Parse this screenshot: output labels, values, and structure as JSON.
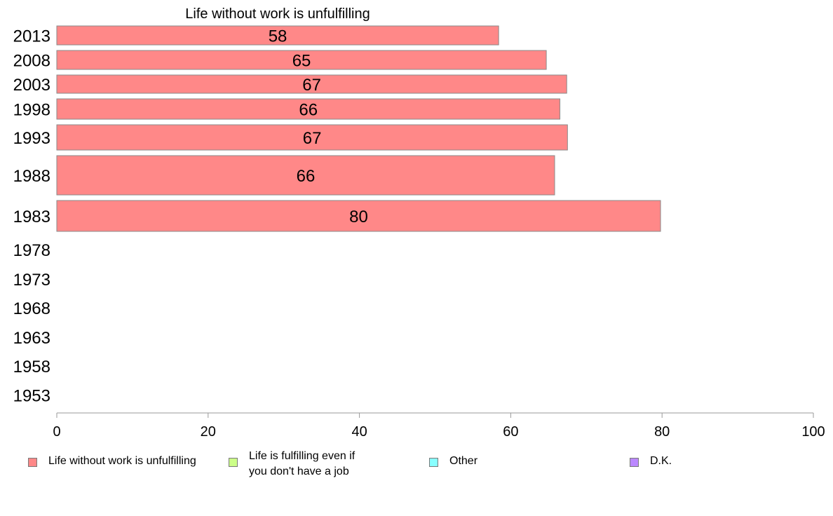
{
  "chart_data": {
    "type": "bar",
    "orientation": "horizontal",
    "title": "Life without work is unfulfilling",
    "categories": [
      "2013",
      "2008",
      "2003",
      "1998",
      "1993",
      "1988",
      "1983",
      "1978",
      "1973",
      "1968",
      "1963",
      "1958",
      "1953"
    ],
    "series": [
      {
        "name": "Life without work is unfulfilling",
        "color": "#ff8888",
        "values": [
          58.4,
          64.7,
          67.4,
          66.5,
          67.5,
          65.8,
          79.8,
          null,
          null,
          null,
          null,
          null,
          null
        ],
        "labels": [
          "58",
          "65",
          "67",
          "66",
          "67",
          "66",
          "80",
          "",
          "",
          "",
          "",
          "",
          ""
        ]
      }
    ],
    "xlim": [
      0,
      100
    ],
    "xticks": [
      "0",
      "20",
      "40",
      "60",
      "80",
      "100"
    ],
    "grid": false,
    "legend_position": "bottom"
  },
  "legend": [
    {
      "label": "Life without work is unfulfilling",
      "color": "#ff8888"
    },
    {
      "label": "Life is fulfilling even if\nyou don't have a job",
      "color": "#ccff88"
    },
    {
      "label": "Other",
      "color": "#88ffff"
    },
    {
      "label": "D.K.",
      "color": "#bb88ff"
    }
  ]
}
